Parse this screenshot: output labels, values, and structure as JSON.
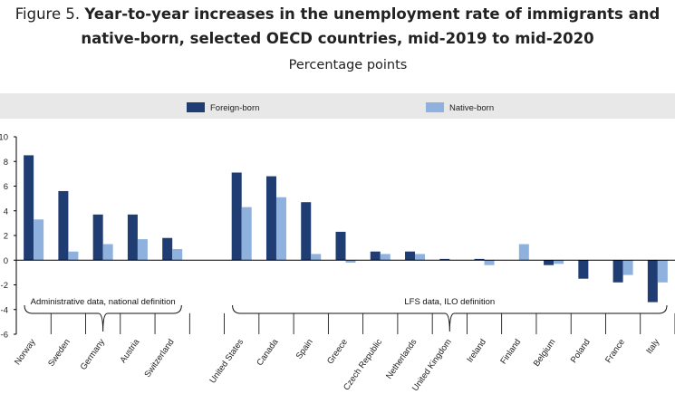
{
  "figure": {
    "label": "Figure 5.",
    "title_line1": "Year-to-year increases in the unemployment rate of immigrants and",
    "title_line2": "native-born, selected OECD countries, mid-2019 to mid-2020",
    "subtitle": "Percentage points"
  },
  "colors": {
    "foreign": "#1f3c73",
    "native": "#8fb1de",
    "legend_bg": "#e8e8e8",
    "axis": "#000000"
  },
  "chart_data": {
    "type": "bar",
    "ylim": [
      -6,
      10
    ],
    "yticks": [
      -6,
      -4,
      -2,
      0,
      2,
      4,
      6,
      8,
      10
    ],
    "legend_position": "top",
    "categories": [
      "Norway",
      "Sweden",
      "Germany",
      "Austria",
      "Switzerland",
      "",
      "United States",
      "Canada",
      "Spain",
      "Greece",
      "Czech Republic",
      "Netherlands",
      "United Kingdom",
      "Ireland",
      "Finland",
      "Belgium",
      "Poland",
      "France",
      "Italy"
    ],
    "series": [
      {
        "name": "Foreign-born",
        "values": [
          8.5,
          5.6,
          3.7,
          3.7,
          1.8,
          null,
          7.1,
          6.8,
          4.7,
          2.3,
          0.7,
          0.7,
          0.1,
          0.1,
          0.0,
          -0.4,
          -1.5,
          -1.8,
          -3.4
        ]
      },
      {
        "name": "Native-born",
        "values": [
          3.3,
          0.7,
          1.3,
          1.7,
          0.9,
          null,
          4.3,
          5.1,
          0.5,
          -0.2,
          0.5,
          0.5,
          0.0,
          -0.4,
          1.3,
          -0.3,
          0.0,
          -1.2,
          -1.8
        ]
      }
    ],
    "annotations": [
      {
        "text": "Administrative data, national definition",
        "from": "Norway",
        "to": "Switzerland"
      },
      {
        "text": "LFS data, ILO definition",
        "from": "United States",
        "to": "Italy"
      }
    ]
  }
}
